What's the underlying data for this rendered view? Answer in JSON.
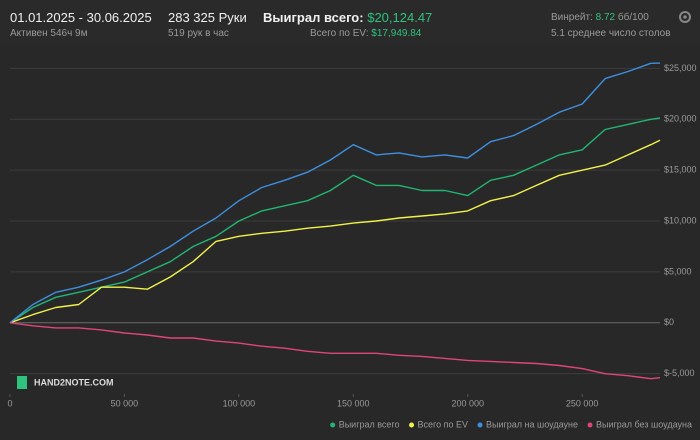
{
  "header": {
    "period": "01.01.2025 - 30.06.2025",
    "active": "Активен 546ч 9м",
    "hands": "283 325 Руки",
    "hands_per_hour": "519 рук в час",
    "won_label": "Выиграл всего:",
    "won_value": "$20,124.47",
    "ev_label": "Всего по EV:",
    "ev_value": "$17,949.84",
    "winrate_label": "Винрейт:",
    "winrate_value": "8.72",
    "winrate_unit": "бб/100",
    "tables": "5.1 среднее число столов"
  },
  "watermark": "HAND2NOTE.COM",
  "chart_data": {
    "type": "line",
    "x": [
      0,
      10000,
      20000,
      30000,
      40000,
      50000,
      60000,
      70000,
      80000,
      90000,
      100000,
      110000,
      120000,
      130000,
      140000,
      150000,
      160000,
      170000,
      180000,
      190000,
      200000,
      210000,
      220000,
      230000,
      240000,
      250000,
      260000,
      270000,
      280000,
      284000
    ],
    "series": [
      {
        "name": "Выиграл всего",
        "color": "#22b573",
        "values": [
          0,
          1500,
          2500,
          3000,
          3500,
          4000,
          5000,
          6000,
          7500,
          8500,
          10000,
          11000,
          11500,
          12000,
          13000,
          14500,
          13500,
          13500,
          13000,
          13000,
          12500,
          14000,
          14500,
          15500,
          16500,
          17000,
          19000,
          19500,
          20000,
          20124.47
        ]
      },
      {
        "name": "Всего по EV",
        "color": "#f2f24a",
        "values": [
          0,
          800,
          1500,
          1800,
          3500,
          3500,
          3300,
          4500,
          6000,
          8000,
          8500,
          8800,
          9000,
          9300,
          9500,
          9800,
          10000,
          10300,
          10500,
          10700,
          11000,
          12000,
          12500,
          13500,
          14500,
          15000,
          15500,
          16500,
          17500,
          17949.84
        ]
      },
      {
        "name": "Выиграл на шоудауне",
        "color": "#3f8fe0",
        "values": [
          0,
          1800,
          3000,
          3500,
          4200,
          5000,
          6200,
          7500,
          9000,
          10300,
          12000,
          13300,
          14000,
          14800,
          16000,
          17500,
          16500,
          16700,
          16300,
          16500,
          16200,
          17800,
          18400,
          19500,
          20700,
          21500,
          24000,
          24700,
          25500,
          25524
        ]
      },
      {
        "name": "Выиграл без шоудауна",
        "color": "#e0457a",
        "values": [
          0,
          -300,
          -500,
          -500,
          -700,
          -1000,
          -1200,
          -1500,
          -1500,
          -1800,
          -2000,
          -2300,
          -2500,
          -2800,
          -3000,
          -3000,
          -3000,
          -3200,
          -3300,
          -3500,
          -3700,
          -3800,
          -3900,
          -4000,
          -4200,
          -4500,
          -5000,
          -5200,
          -5500,
          -5400
        ]
      }
    ],
    "xlim": [
      0,
      284000
    ],
    "xticks": [
      0,
      {
        "value": 50000,
        "label": "50 000"
      },
      {
        "value": 100000,
        "label": "100 000"
      },
      {
        "value": 150000,
        "label": "150 000"
      },
      {
        "value": 200000,
        "label": "200 000"
      },
      {
        "value": 250000,
        "label": "250 000"
      }
    ],
    "ylim": [
      -7000,
      27500
    ],
    "yticks": [
      {
        "value": -5000,
        "label": "$-5,000"
      },
      {
        "value": 0,
        "label": "$0"
      },
      {
        "value": 5000,
        "label": "$5,000"
      },
      {
        "value": 10000,
        "label": "$10,000"
      },
      {
        "value": 15000,
        "label": "$15,000"
      },
      {
        "value": 20000,
        "label": "$20,000"
      },
      {
        "value": 25000,
        "label": "$25,000"
      }
    ],
    "grid": true,
    "legend": "bottom-right"
  }
}
